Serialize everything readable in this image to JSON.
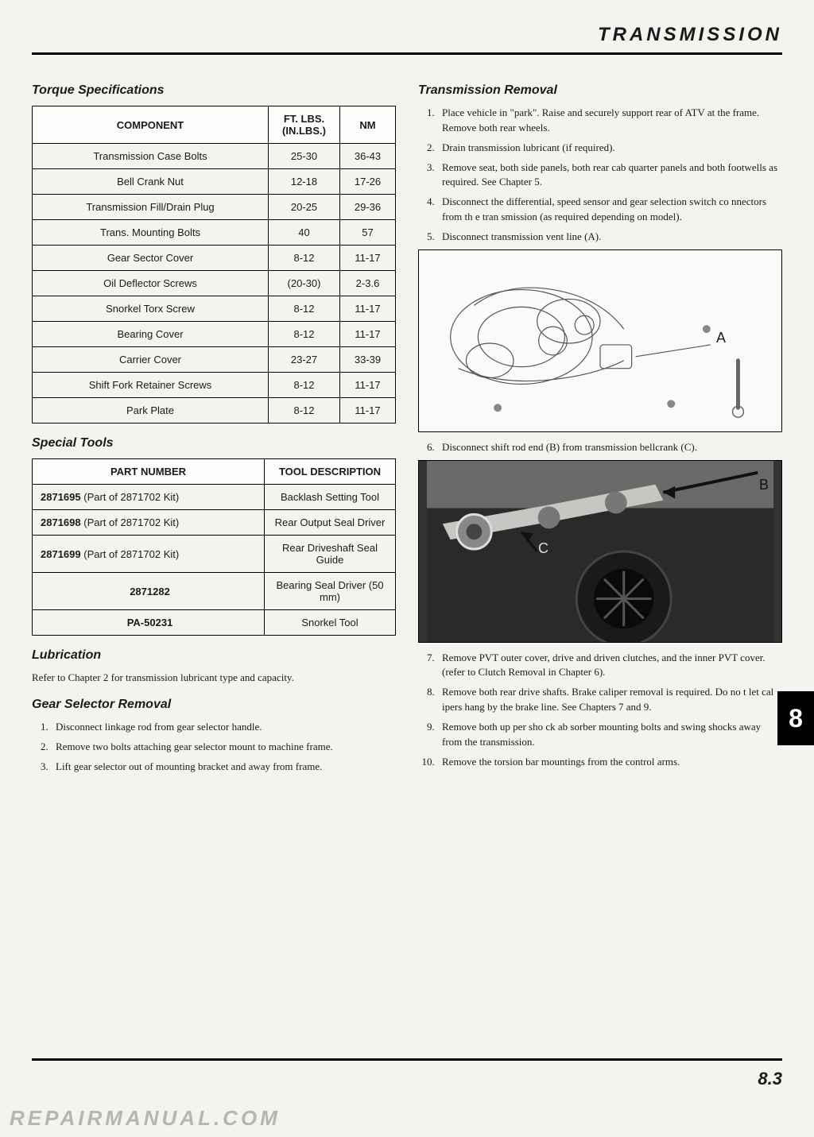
{
  "header": {
    "title": "TRANSMISSION"
  },
  "left": {
    "torque": {
      "title": "Torque Specifications",
      "headers": [
        "COMPONENT",
        "FT. LBS. (IN.LBS.)",
        "NM"
      ],
      "rows": [
        [
          "Transmission Case Bolts",
          "25-30",
          "36-43"
        ],
        [
          "Bell Crank Nut",
          "12-18",
          "17-26"
        ],
        [
          "Transmission Fill/Drain Plug",
          "20-25",
          "29-36"
        ],
        [
          "Trans. Mounting Bolts",
          "40",
          "57"
        ],
        [
          "Gear Sector Cover",
          "8-12",
          "11-17"
        ],
        [
          "Oil Deflector Screws",
          "(20-30)",
          "2-3.6"
        ],
        [
          "Snorkel Torx Screw",
          "8-12",
          "11-17"
        ],
        [
          "Bearing Cover",
          "8-12",
          "11-17"
        ],
        [
          "Carrier Cover",
          "23-27",
          "33-39"
        ],
        [
          "Shift Fork Retainer Screws",
          "8-12",
          "11-17"
        ],
        [
          "Park Plate",
          "8-12",
          "11-17"
        ]
      ]
    },
    "tools": {
      "title": "Special Tools",
      "headers": [
        "PART NUMBER",
        "TOOL DESCRIPTION"
      ],
      "rows": [
        {
          "pn": "2871695",
          "suffix": " (Part of 2871702 Kit)",
          "desc": "Backlash Setting Tool"
        },
        {
          "pn": "2871698",
          "suffix": " (Part of 2871702 Kit)",
          "desc": "Rear Output Seal Driver"
        },
        {
          "pn": "2871699",
          "suffix": " (Part of 2871702 Kit)",
          "desc": "Rear Driveshaft Seal Guide"
        },
        {
          "pn": "2871282",
          "suffix": "",
          "desc": "Bearing Seal Driver (50 mm)"
        },
        {
          "pn": "PA-50231",
          "suffix": "",
          "desc": "Snorkel Tool"
        }
      ]
    },
    "lubrication": {
      "title": "Lubrication",
      "text": "Refer to Chapter 2 for transmission lubricant type and capacity."
    },
    "gear_selector": {
      "title": "Gear Selector Removal",
      "steps": [
        "Disconnect linkage rod from gear selector handle.",
        "Remove two bolts attaching gear selector mount to machine frame.",
        "Lift gear selector out of mounting bracket and away from frame."
      ]
    }
  },
  "right": {
    "removal": {
      "title": "Transmission Removal",
      "steps_a": [
        "Place vehicle in \"park\". Raise and securely support rear of ATV at the frame. Remove both rear wheels.",
        "Drain transmission lubricant (if required).",
        "Remove seat, both side panels, both rear cab quarter panels and both footwells as required. See Chapter 5.",
        "Disconnect the differential, speed sensor and gear selection switch co nnectors from th e tran smission (as required depending on model).",
        "Disconnect transmission vent line (A)."
      ],
      "fig1_label": "A",
      "step6": "Disconnect shift rod end (B) from transmission bellcrank (C).",
      "fig2_labels": {
        "b": "B",
        "c": "C"
      },
      "steps_b": [
        "Remove PVT outer cover, drive and driven clutches, and the inner PVT cover. (refer to Clutch Removal in Chapter 6).",
        "Remove both rear drive shafts. Brake caliper removal is required. Do no t let cal ipers hang by the brake line. See Chapters 7 and 9.",
        "Remove both up per sho ck ab sorber mounting bolts and swing shocks away from the transmission.",
        "Remove the torsion bar mountings from the control arms."
      ]
    }
  },
  "chapter_tab": "8",
  "page_number": "8.3",
  "watermark": "REPAIRMANUAL.COM"
}
